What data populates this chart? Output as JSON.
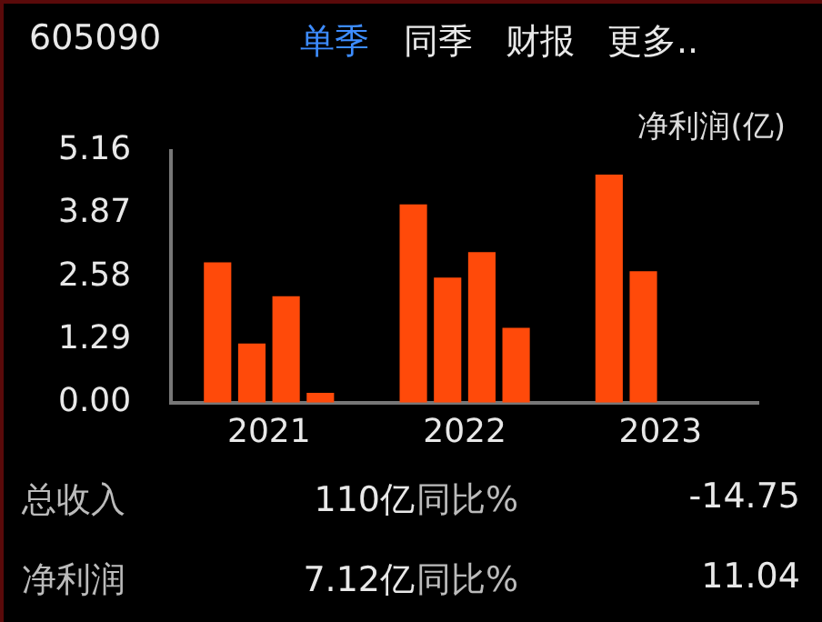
{
  "chart_data": {
    "type": "bar",
    "title": "605090",
    "ylabel": "净利润(亿)",
    "categories": [
      "2021",
      "2022",
      "2023"
    ],
    "series": [
      {
        "color": "#ff4a0a",
        "values": [
          2.87,
          4.06,
          4.67
        ]
      },
      {
        "color": "#ff4a0a",
        "values": [
          1.21,
          2.56,
          2.69
        ]
      },
      {
        "color": "#ff4a0a",
        "values": [
          2.18,
          3.08,
          null
        ]
      },
      {
        "color": "#ff4a0a",
        "values": [
          0.2,
          1.53,
          null
        ]
      }
    ],
    "ylim": [
      0,
      5.16
    ],
    "yticks": [
      {
        "value": 0,
        "label": "0.00"
      },
      {
        "value": 1.29,
        "label": "1.29"
      },
      {
        "value": 2.58,
        "label": "2.58"
      },
      {
        "value": 3.87,
        "label": "3.87"
      },
      {
        "value": 5.16,
        "label": "5.16"
      }
    ],
    "grid": false,
    "legend": false,
    "annotations": [
      "单季",
      "同季",
      "财报",
      "更多..",
      "总收入",
      "110亿",
      "同比%",
      "-14.75",
      "净利润",
      "7.12亿",
      "同比%",
      "11.04"
    ]
  }
}
